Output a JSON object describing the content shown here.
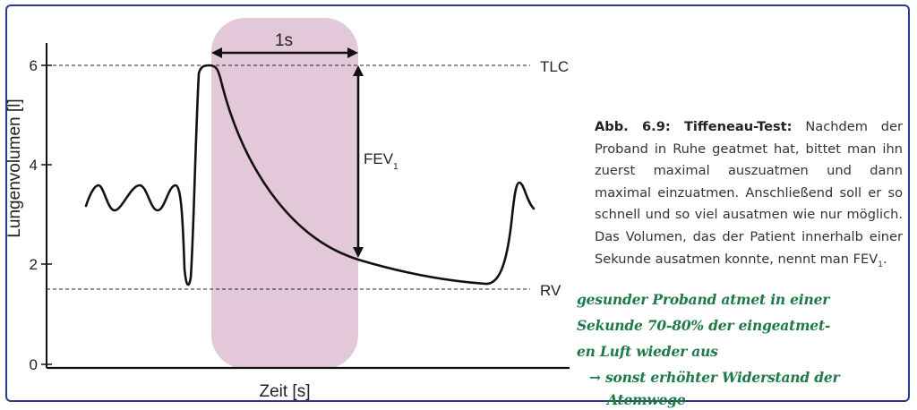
{
  "diagram": {
    "y_axis_label": "Lungenvolumen [l]",
    "x_axis_label": "Zeit [s]",
    "y_ticks": [
      "0",
      "2",
      "4",
      "6"
    ],
    "tlc_label": "TLC",
    "rv_label": "RV",
    "interval_label": "1s",
    "fev_label": "FEV",
    "fev_sub": "1",
    "highlight_color": "#e2c8d8",
    "curve_color": "#111111"
  },
  "caption": {
    "title": "Abb. 6.9: Tiffeneau-Test:",
    "body": " Nachdem der Proband in Ruhe geatmet hat, bittet man ihn zuerst maximal auszuatmen und dann maximal einzuatmen. Anschließend soll er so schnell und so viel ausatmen wie nur möglich. Das Volumen, das der Patient innerhalb einer Sekunde ausatmen konnte, nennt man FEV",
    "body_sub": "1",
    "body_end": "."
  },
  "handwritten_note": {
    "lines": [
      "gesunder Proband atmet in einer",
      "Sekunde 70-80% der eingeatmet-",
      "en Luft wieder aus",
      "→ sonst erhöhter Widerstand der",
      "Atemwege"
    ]
  }
}
